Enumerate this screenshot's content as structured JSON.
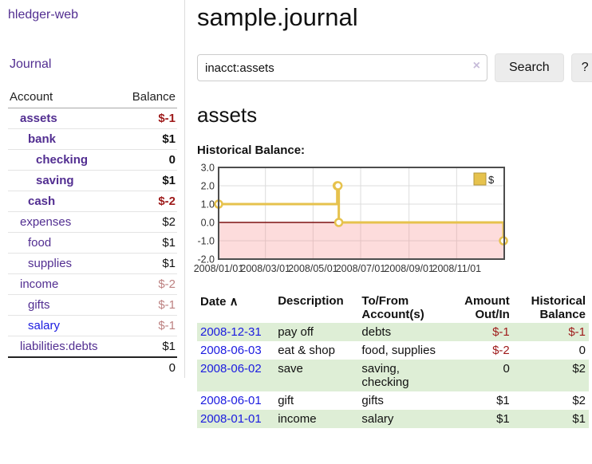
{
  "colors": {
    "link_purple": "#522e91",
    "link_blue": "#1b1be0",
    "negative": "#9e1a1a",
    "negative_soft": "#bd8181",
    "row_green": "#deeed6",
    "chart_gold": "#e6c24d",
    "chart_gold_border": "#b3953a",
    "zero_line_red": "#7d1010",
    "negative_area_pink": "rgba(250,140,140,0.30)",
    "chart_border": "#4d4d4d",
    "gridline": "#dcdcdc"
  },
  "sidebar": {
    "brand": "hledger-web",
    "journal_label": "Journal",
    "accounts_table": {
      "account_header": "Account",
      "balance_header": "Balance",
      "rows": [
        {
          "name": "assets",
          "depth": 1,
          "bold": true,
          "balance": "$-1",
          "neg": "strong"
        },
        {
          "name": "bank",
          "depth": 2,
          "bold": true,
          "balance": "$1"
        },
        {
          "name": "checking",
          "depth": 3,
          "bold": true,
          "balance": "0"
        },
        {
          "name": "saving",
          "depth": 3,
          "bold": true,
          "balance": "$1"
        },
        {
          "name": "cash",
          "depth": 2,
          "bold": true,
          "balance": "$-2",
          "neg": "strong"
        },
        {
          "name": "expenses",
          "depth": 1,
          "bold": false,
          "balance": "$2"
        },
        {
          "name": "food",
          "depth": 2,
          "bold": false,
          "balance": "$1"
        },
        {
          "name": "supplies",
          "depth": 2,
          "bold": false,
          "balance": "$1"
        },
        {
          "name": "income",
          "depth": 1,
          "bold": false,
          "balance": "$-2",
          "neg": "soft"
        },
        {
          "name": "gifts",
          "depth": 2,
          "bold": false,
          "balance": "$-1",
          "neg": "soft"
        },
        {
          "name": "salary",
          "depth": 2,
          "bold": false,
          "balance": "$-1",
          "neg": "soft",
          "link_color": "blue"
        },
        {
          "name": "liabilities:debts",
          "depth": 1,
          "bold": false,
          "balance": "$1"
        }
      ],
      "total": "0"
    }
  },
  "main": {
    "title": "sample.journal",
    "search": {
      "query": "inacct:assets",
      "clear_icon": "×",
      "search_button_label": "Search",
      "help_button_label": "?"
    },
    "account_heading": "assets",
    "chart_label": "Historical Balance:",
    "register": {
      "headers": [
        "Date",
        "Description",
        "To/From Account(s)",
        "Amount Out/In",
        "Historical Balance"
      ],
      "sort_icon": "∧",
      "rows": [
        {
          "date": "2008-12-31",
          "description": "pay off",
          "accounts": "debts",
          "amount": "$-1",
          "amount_neg": true,
          "balance": "$-1",
          "balance_neg": true
        },
        {
          "date": "2008-06-03",
          "description": "eat & shop",
          "accounts": "food, supplies",
          "amount": "$-2",
          "amount_neg": true,
          "balance": "0",
          "balance_neg": false
        },
        {
          "date": "2008-06-02",
          "description": "save",
          "accounts": "saving, checking",
          "amount": "0",
          "amount_neg": false,
          "balance": "$2",
          "balance_neg": false
        },
        {
          "date": "2008-06-01",
          "description": "gift",
          "accounts": "gifts",
          "amount": "$1",
          "amount_neg": false,
          "balance": "$2",
          "balance_neg": false
        },
        {
          "date": "2008-01-01",
          "description": "income",
          "accounts": "salary",
          "amount": "$1",
          "amount_neg": false,
          "balance": "$1",
          "balance_neg": false
        }
      ]
    }
  },
  "chart_data": {
    "type": "line",
    "title": "Historical Balance:",
    "style": "step-after",
    "series": [
      {
        "name": "$",
        "points": [
          {
            "date": "2008-01-01",
            "value": 1
          },
          {
            "date": "2008-06-01",
            "value": 2
          },
          {
            "date": "2008-06-02",
            "value": 2
          },
          {
            "date": "2008-06-03",
            "value": 0
          },
          {
            "date": "2008-12-31",
            "value": -1
          }
        ]
      }
    ],
    "x_ticks": [
      "2008/01/01",
      "2008/03/01",
      "2008/05/01",
      "2008/07/01",
      "2008/09/01",
      "2008/11/01"
    ],
    "y_ticks": [
      "3.0",
      "2.0",
      "1.0",
      "0.0",
      "-1.0",
      "-2.0"
    ],
    "ylim": [
      -2,
      3
    ],
    "x_range_days": [
      0,
      366
    ],
    "grid": true,
    "negative_region_shaded": true,
    "legend": {
      "label": "$",
      "position": "top-right"
    }
  }
}
